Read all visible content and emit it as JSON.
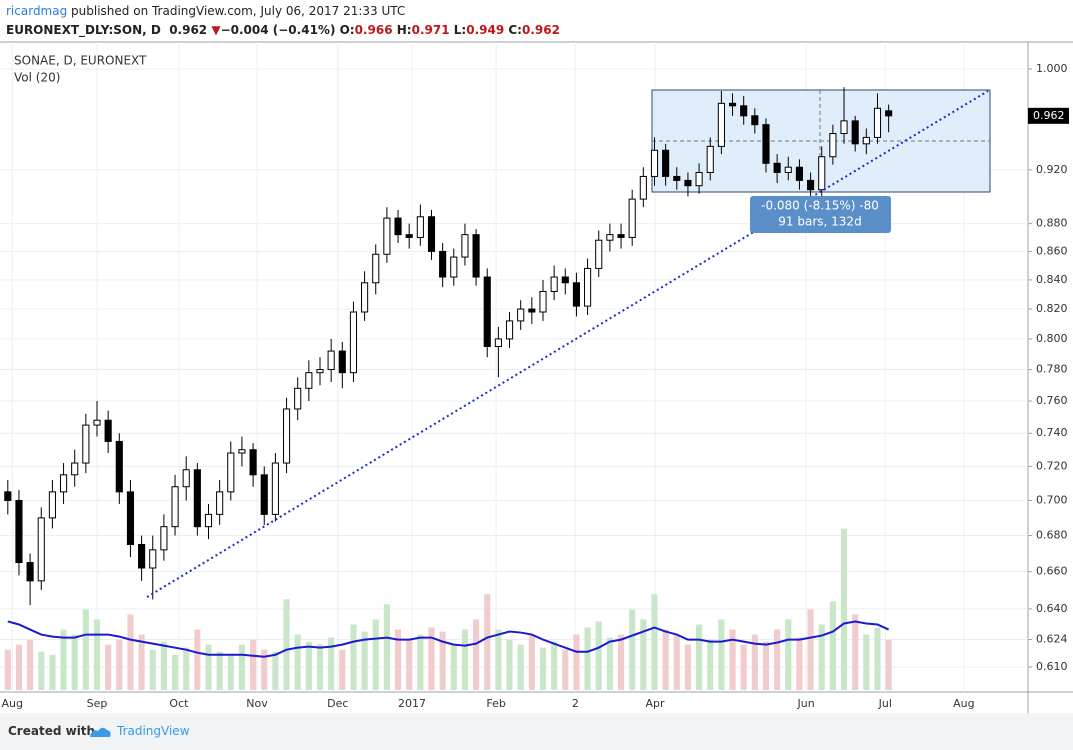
{
  "header": {
    "author": "ricardmag",
    "published": "published on TradingView.com, July 06, 2017 21:33 UTC",
    "symbol": "EURONEXT_DLY:SON, D",
    "last": "0.962",
    "arrow": "▼",
    "change": "−0.004 (−0.41%)",
    "o_label": "O:",
    "o": "0.966",
    "h_label": "H:",
    "h": "0.971",
    "l_label": "L:",
    "l": "0.949",
    "c_label": "C:",
    "c": "0.962"
  },
  "footer": {
    "created": "Created with",
    "brand": "TradingView"
  },
  "chart_data": {
    "type": "candlestick",
    "title": "SONAE, D, EURONEXT",
    "subtitle": "Vol (20)",
    "log_scale": true,
    "grid": true,
    "last_price_label": "0.962",
    "range_label": "-0.080 (-8.15%) -80",
    "range_bars": "91 bars, 132d",
    "up_color": "#ffffff",
    "down_color": "#000000",
    "volume_up_color": "#c9e6c9",
    "volume_down_color": "#f0cccc",
    "volume_ma_color": "#1a1ad0",
    "ylim": [
      0.5985,
      1.02
    ],
    "yticks": [
      {
        "value": 1.0,
        "label": "1.000"
      },
      {
        "value": 0.92,
        "label": "0.920"
      },
      {
        "value": 0.88,
        "label": "0.880"
      },
      {
        "value": 0.86,
        "label": "0.860"
      },
      {
        "value": 0.84,
        "label": "0.840"
      },
      {
        "value": 0.82,
        "label": "0.820"
      },
      {
        "value": 0.8,
        "label": "0.800"
      },
      {
        "value": 0.78,
        "label": "0.780"
      },
      {
        "value": 0.76,
        "label": "0.760"
      },
      {
        "value": 0.74,
        "label": "0.740"
      },
      {
        "value": 0.72,
        "label": "0.720"
      },
      {
        "value": 0.7,
        "label": "0.700"
      },
      {
        "value": 0.68,
        "label": "0.680"
      },
      {
        "value": 0.66,
        "label": "0.660"
      },
      {
        "value": 0.64,
        "label": "0.640"
      },
      {
        "value": 0.624,
        "label": "0.624"
      },
      {
        "value": 0.61,
        "label": "0.610"
      }
    ],
    "xlim": [
      -0.7,
      91.5
    ],
    "xticks": [
      {
        "value": 0.4,
        "label": "Aug"
      },
      {
        "value": 8.0,
        "label": "Sep"
      },
      {
        "value": 15.35,
        "label": "Oct"
      },
      {
        "value": 22.35,
        "label": "Nov"
      },
      {
        "value": 29.6,
        "label": "Dec"
      },
      {
        "value": 36.25,
        "label": "2017"
      },
      {
        "value": 43.8,
        "label": "Feb"
      },
      {
        "value": 50.9,
        "label": "2"
      },
      {
        "value": 58.05,
        "label": "Apr"
      },
      {
        "value": 71.6,
        "label": "Jun"
      },
      {
        "value": 78.7,
        "label": "Jul"
      },
      {
        "value": 85.75,
        "label": "Aug"
      }
    ],
    "open": [
      0.705,
      0.7,
      0.665,
      0.655,
      0.69,
      0.705,
      0.715,
      0.722,
      0.745,
      0.748,
      0.735,
      0.705,
      0.675,
      0.662,
      0.672,
      0.685,
      0.708,
      0.718,
      0.685,
      0.692,
      0.705,
      0.728,
      0.73,
      0.715,
      0.692,
      0.722,
      0.755,
      0.768,
      0.778,
      0.78,
      0.792,
      0.778,
      0.818,
      0.838,
      0.858,
      0.884,
      0.872,
      0.87,
      0.885,
      0.86,
      0.842,
      0.856,
      0.872,
      0.842,
      0.795,
      0.8,
      0.812,
      0.82,
      0.818,
      0.832,
      0.842,
      0.838,
      0.822,
      0.848,
      0.868,
      0.872,
      0.87,
      0.898,
      0.915,
      0.935,
      0.915,
      0.912,
      0.908,
      0.918,
      0.938,
      0.972,
      0.97,
      0.962,
      0.955,
      0.925,
      0.918,
      0.922,
      0.912,
      0.905,
      0.93,
      0.948,
      0.958,
      0.94,
      0.945,
      0.966
    ],
    "high": [
      0.712,
      0.706,
      0.67,
      0.696,
      0.712,
      0.722,
      0.73,
      0.752,
      0.76,
      0.754,
      0.74,
      0.712,
      0.68,
      0.68,
      0.692,
      0.715,
      0.726,
      0.722,
      0.698,
      0.712,
      0.735,
      0.738,
      0.734,
      0.72,
      0.728,
      0.762,
      0.775,
      0.786,
      0.788,
      0.8,
      0.798,
      0.825,
      0.846,
      0.865,
      0.892,
      0.89,
      0.88,
      0.894,
      0.89,
      0.866,
      0.862,
      0.88,
      0.876,
      0.848,
      0.808,
      0.818,
      0.826,
      0.828,
      0.84,
      0.85,
      0.848,
      0.845,
      0.855,
      0.875,
      0.88,
      0.88,
      0.905,
      0.922,
      0.945,
      0.94,
      0.922,
      0.918,
      0.925,
      0.945,
      0.982,
      0.98,
      0.978,
      0.968,
      0.96,
      0.932,
      0.93,
      0.928,
      0.918,
      0.938,
      0.955,
      0.985,
      0.962,
      0.952,
      0.98,
      0.971
    ],
    "low": [
      0.692,
      0.658,
      0.642,
      0.65,
      0.684,
      0.698,
      0.708,
      0.716,
      0.738,
      0.728,
      0.698,
      0.668,
      0.655,
      0.645,
      0.666,
      0.68,
      0.7,
      0.68,
      0.678,
      0.686,
      0.7,
      0.72,
      0.708,
      0.686,
      0.688,
      0.716,
      0.748,
      0.76,
      0.77,
      0.772,
      0.768,
      0.772,
      0.812,
      0.83,
      0.852,
      0.866,
      0.862,
      0.864,
      0.854,
      0.835,
      0.836,
      0.85,
      0.836,
      0.788,
      0.775,
      0.794,
      0.806,
      0.81,
      0.812,
      0.826,
      0.83,
      0.815,
      0.816,
      0.842,
      0.86,
      0.862,
      0.864,
      0.892,
      0.908,
      0.908,
      0.905,
      0.9,
      0.902,
      0.912,
      0.932,
      0.962,
      0.955,
      0.948,
      0.918,
      0.91,
      0.912,
      0.905,
      0.899,
      0.9,
      0.924,
      0.94,
      0.934,
      0.932,
      0.94,
      0.949
    ],
    "close": [
      0.7,
      0.665,
      0.655,
      0.69,
      0.705,
      0.715,
      0.722,
      0.745,
      0.748,
      0.735,
      0.705,
      0.675,
      0.662,
      0.672,
      0.685,
      0.708,
      0.718,
      0.685,
      0.692,
      0.705,
      0.728,
      0.73,
      0.715,
      0.692,
      0.722,
      0.755,
      0.768,
      0.778,
      0.78,
      0.792,
      0.778,
      0.818,
      0.838,
      0.858,
      0.884,
      0.872,
      0.87,
      0.885,
      0.86,
      0.842,
      0.856,
      0.872,
      0.842,
      0.795,
      0.8,
      0.812,
      0.82,
      0.818,
      0.832,
      0.842,
      0.838,
      0.822,
      0.848,
      0.868,
      0.872,
      0.87,
      0.898,
      0.915,
      0.935,
      0.915,
      0.912,
      0.908,
      0.918,
      0.938,
      0.972,
      0.97,
      0.962,
      0.955,
      0.925,
      0.918,
      0.922,
      0.912,
      0.905,
      0.93,
      0.948,
      0.958,
      0.94,
      0.945,
      0.968,
      0.962
    ],
    "volume": [
      40,
      45,
      50,
      38,
      35,
      60,
      55,
      80,
      70,
      45,
      50,
      75,
      55,
      40,
      48,
      35,
      42,
      60,
      45,
      38,
      35,
      45,
      50,
      40,
      38,
      90,
      55,
      48,
      45,
      52,
      40,
      65,
      58,
      70,
      85,
      60,
      50,
      55,
      62,
      58,
      45,
      60,
      70,
      95,
      60,
      50,
      45,
      55,
      42,
      48,
      40,
      55,
      62,
      68,
      52,
      55,
      80,
      70,
      95,
      60,
      55,
      45,
      65,
      50,
      70,
      60,
      45,
      55,
      48,
      60,
      70,
      52,
      80,
      65,
      88,
      160,
      75,
      55,
      62,
      50
    ],
    "volume_ma": [
      68,
      65,
      60,
      55,
      53,
      52,
      52,
      55,
      55,
      55,
      53,
      50,
      48,
      46,
      44,
      42,
      40,
      37,
      35,
      35,
      35,
      35,
      34,
      33,
      35,
      40,
      42,
      43,
      42,
      43,
      45,
      48,
      50,
      51,
      52,
      50,
      50,
      52,
      52,
      48,
      45,
      44,
      46,
      52,
      55,
      58,
      57,
      55,
      50,
      46,
      42,
      38,
      38,
      42,
      48,
      50,
      54,
      58,
      62,
      58,
      55,
      50,
      50,
      48,
      48,
      50,
      48,
      46,
      45,
      47,
      50,
      50,
      52,
      54,
      58,
      66,
      68,
      66,
      65,
      60
    ]
  }
}
